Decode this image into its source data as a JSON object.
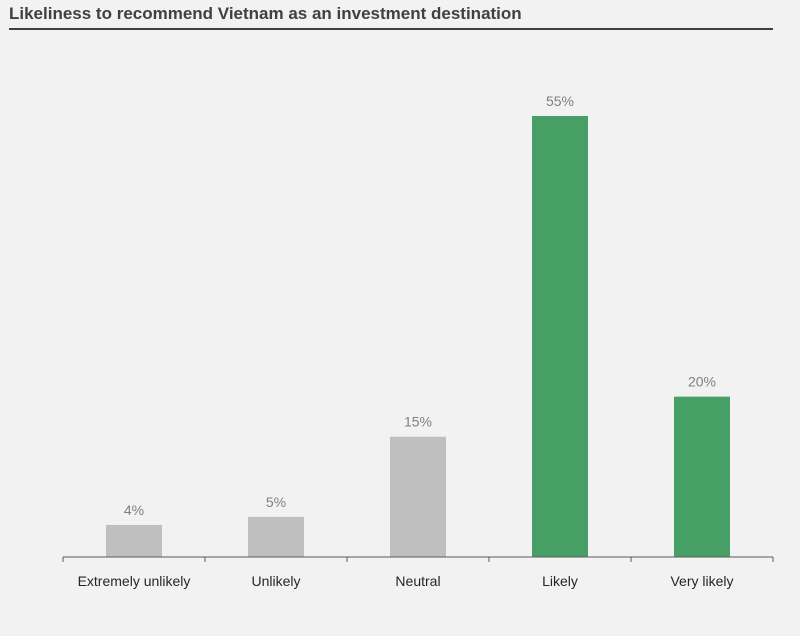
{
  "chart_data": {
    "type": "bar",
    "title": "Likeliness to recommend Vietnam as an investment destination",
    "categories": [
      "Extremely unlikely",
      "Unlikely",
      "Neutral",
      "Likely",
      "Very likely"
    ],
    "values": [
      4,
      5,
      15,
      55,
      20
    ],
    "value_labels": [
      "4%",
      "5%",
      "15%",
      "55%",
      "20%"
    ],
    "bar_colors": [
      "#bfbfbf",
      "#bfbfbf",
      "#bfbfbf",
      "#46a065",
      "#46a065"
    ],
    "ylim": [
      0,
      60
    ],
    "grid": false,
    "legend": "none",
    "xlabel": "",
    "ylabel": ""
  }
}
